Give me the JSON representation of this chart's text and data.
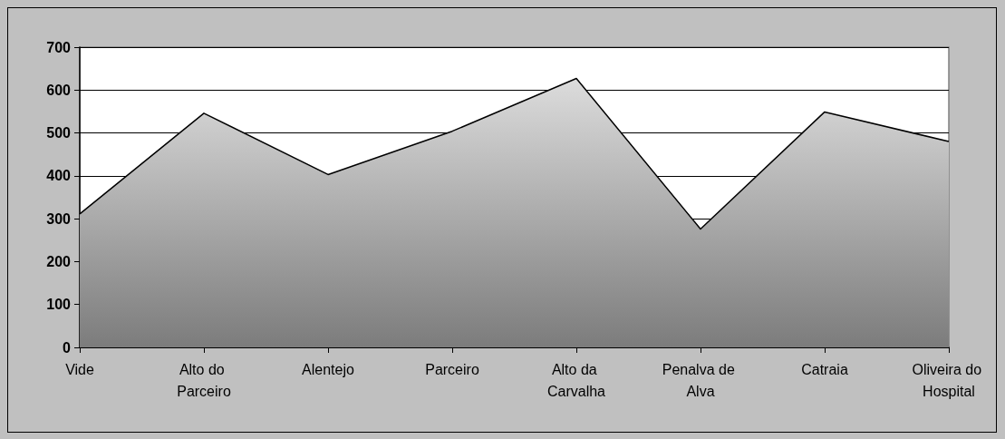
{
  "chart_data": {
    "type": "area",
    "categories": [
      "Vide",
      "Alto do Parceiro",
      "Alentejo",
      "Parceiro",
      "Alto da Carvalha",
      "Penalva de Alva",
      "Catraia",
      "Oliveira do Hospital"
    ],
    "series": [
      {
        "color": "#000000",
        "values": [
          311,
          546,
          403,
          504,
          627,
          276,
          549,
          480
        ]
      }
    ],
    "ylim": [
      0,
      700
    ],
    "yticks": [
      0,
      100,
      200,
      300,
      400,
      500,
      600,
      700
    ],
    "grid": "y",
    "marker": "none",
    "line_style": "solid"
  }
}
